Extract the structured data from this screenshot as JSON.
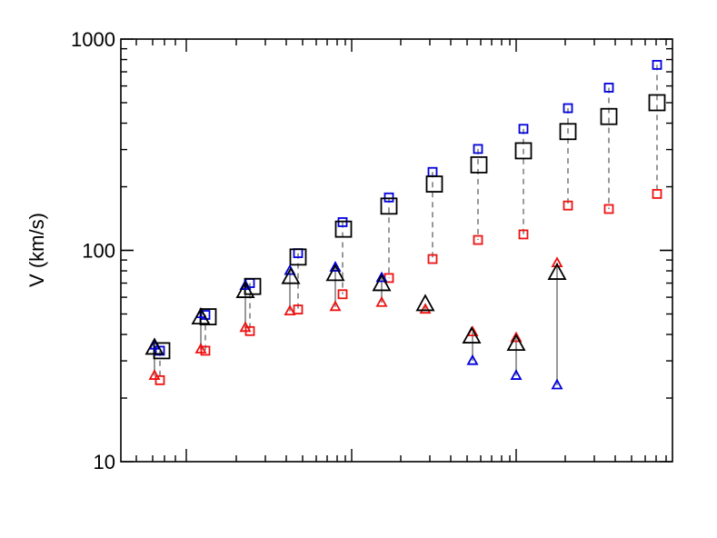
{
  "chart_data": {
    "type": "scatter",
    "title": "",
    "xlabel": "",
    "ylabel": "V (km/s)",
    "y_scale": "log",
    "x_scale": "log",
    "ylim": [
      10,
      1000
    ],
    "y_ticks": [
      {
        "value": 10,
        "label": "10"
      },
      {
        "value": 100,
        "label": "100"
      },
      {
        "value": 1000,
        "label": "1000"
      }
    ],
    "x_ticks_labels_shown": false,
    "grid": false,
    "legend": "none",
    "colors": {
      "blue": "#0000dd",
      "red": "#ee1111",
      "black": "#000000",
      "connector": "#999999"
    },
    "squares": [
      {
        "x": 1,
        "blue": 33.5,
        "black": 33.5,
        "red": 24.3
      },
      {
        "x": 2,
        "blue": 49.5,
        "black": 48.5,
        "red": 33.5
      },
      {
        "x": 3,
        "blue": 70,
        "black": 67.5,
        "red": 41.5
      },
      {
        "x": 4,
        "blue": 97,
        "black": 93,
        "red": 52.5
      },
      {
        "x": 5,
        "blue": 136,
        "black": 126,
        "red": 62
      },
      {
        "x": 6,
        "blue": 178,
        "black": 162,
        "red": 74
      },
      {
        "x": 7,
        "blue": 235,
        "black": 206,
        "red": 91
      },
      {
        "x": 8,
        "blue": 302,
        "black": 254,
        "red": 112
      },
      {
        "x": 9,
        "blue": 376,
        "black": 296,
        "red": 119
      },
      {
        "x": 10,
        "blue": 471,
        "black": 365,
        "red": 163
      },
      {
        "x": 11,
        "blue": 589,
        "black": 430,
        "red": 157
      },
      {
        "x": 12,
        "blue": 755,
        "black": 500,
        "red": 185
      }
    ],
    "triangles": [
      {
        "x": 1,
        "blue": 35.5,
        "black": 34.5,
        "red": 25.5
      },
      {
        "x": 2,
        "blue": 50,
        "black": 48,
        "red": 34
      },
      {
        "x": 3,
        "blue": 68,
        "black": 64,
        "red": 43
      },
      {
        "x": 4,
        "blue": 80,
        "black": 74.5,
        "red": 51.5
      },
      {
        "x": 5,
        "blue": 83,
        "black": 77,
        "red": 54
      },
      {
        "x": 6,
        "blue": 74,
        "black": 69,
        "red": 56.5
      },
      {
        "x": 7,
        "blue": null,
        "black": 55.5,
        "red": 52.5
      },
      {
        "x": 8,
        "blue": 30,
        "black": 39,
        "red": 41
      },
      {
        "x": 9,
        "blue": 25.5,
        "black": 36,
        "red": 38.5
      },
      {
        "x": 10,
        "blue": 23,
        "black": 78,
        "red": 87
      }
    ]
  }
}
